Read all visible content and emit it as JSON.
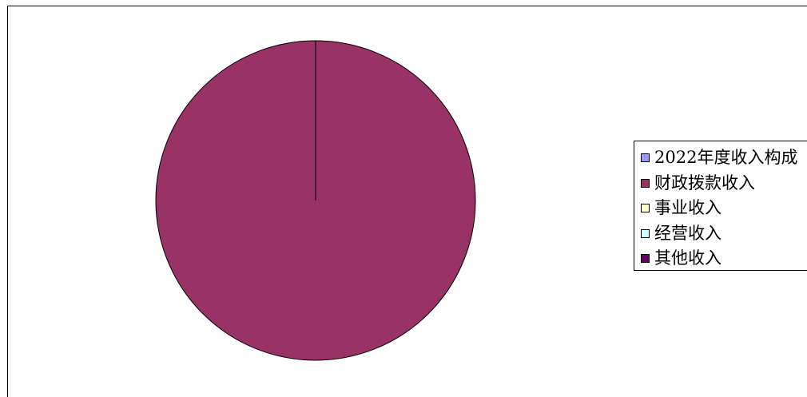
{
  "chart_data": {
    "type": "pie",
    "title": "",
    "categories": [
      "2022年度收入构成",
      "财政拨款收入",
      "事业收入",
      "经营收入",
      "其他收入"
    ],
    "values": [
      0,
      100,
      0,
      0,
      0
    ],
    "colors": [
      "#9999ff",
      "#993366",
      "#ffffcc",
      "#ccffff",
      "#660066"
    ],
    "legend_position": "right"
  }
}
